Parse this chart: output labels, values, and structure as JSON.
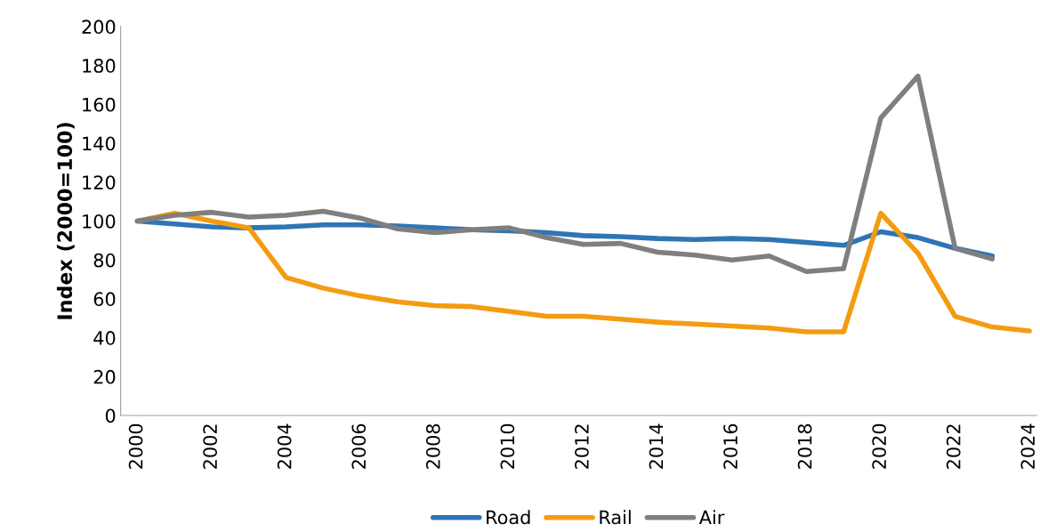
{
  "chart_data": {
    "type": "line",
    "ylabel": "Index (2000=100)",
    "categories": [
      "2000",
      null,
      "2002",
      null,
      "2004",
      null,
      "2006",
      null,
      "2008",
      null,
      "2010",
      null,
      "2012",
      null,
      "2014",
      null,
      "2016",
      null,
      "2018",
      null,
      "2020",
      null,
      "2022",
      null,
      "2024"
    ],
    "series": [
      {
        "name": "Road",
        "color": "#2e75b6",
        "values": [
          100,
          98.5,
          97,
          96.5,
          97,
          98,
          98,
          97.5,
          96.5,
          95.5,
          95,
          94,
          92.5,
          92,
          91,
          90.5,
          91,
          90.5,
          89,
          87.5,
          94.5,
          91.5,
          86,
          82,
          null
        ]
      },
      {
        "name": "Rail",
        "color": "#f39c12",
        "values": [
          100,
          104,
          100,
          96.5,
          71,
          65.5,
          61.5,
          58.5,
          56.5,
          56,
          53.5,
          51,
          51,
          49.5,
          48,
          47,
          46,
          45,
          43,
          43,
          104,
          83.5,
          51,
          45.5,
          43.5
        ]
      },
      {
        "name": "Air",
        "color": "#7f7f7f",
        "values": [
          100,
          103,
          104.5,
          102,
          103,
          105,
          101.5,
          96,
          94,
          95.5,
          96.5,
          91.5,
          88,
          88.5,
          84,
          82.5,
          80,
          82,
          74,
          75.5,
          153,
          174.5,
          86,
          80.5,
          null
        ]
      }
    ],
    "ylim": [
      0,
      200
    ],
    "yticks": [
      0,
      20,
      40,
      60,
      80,
      100,
      120,
      140,
      160,
      180,
      200
    ],
    "grid": false,
    "legend": "bottom",
    "marker": "none",
    "line_style": "solid"
  }
}
